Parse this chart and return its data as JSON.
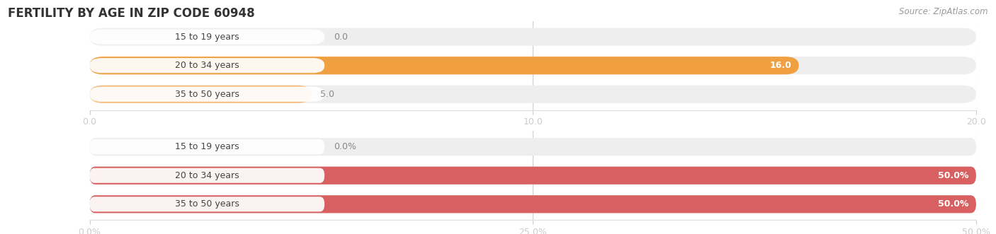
{
  "title": "FERTILITY BY AGE IN ZIP CODE 60948",
  "source": "Source: ZipAtlas.com",
  "top_chart": {
    "categories": [
      "15 to 19 years",
      "20 to 34 years",
      "35 to 50 years"
    ],
    "values": [
      0.0,
      16.0,
      5.0
    ],
    "xlim": [
      0,
      20.0
    ],
    "xticks": [
      0.0,
      10.0,
      20.0
    ],
    "xtick_labels": [
      "0.0",
      "10.0",
      "20.0"
    ],
    "bar_colors": [
      "#f5c9a0",
      "#f0a040",
      "#f5be80"
    ],
    "bar_height": 0.62
  },
  "bottom_chart": {
    "categories": [
      "15 to 19 years",
      "20 to 34 years",
      "35 to 50 years"
    ],
    "values": [
      0.0,
      50.0,
      50.0
    ],
    "xlim": [
      0,
      50.0
    ],
    "xticks": [
      0.0,
      25.0,
      50.0
    ],
    "xtick_labels": [
      "0.0%",
      "25.0%",
      "50.0%"
    ],
    "bar_colors": [
      "#ebb8a8",
      "#d96060",
      "#d96060"
    ],
    "bar_height": 0.62
  },
  "label_fontsize": 9,
  "value_fontsize": 9,
  "title_fontsize": 12,
  "source_fontsize": 8.5,
  "bg_bar": "#eeeeee",
  "bg_figure": "#ffffff",
  "label_bg": "#ffffff",
  "label_color": "#444444",
  "title_color": "#333333"
}
